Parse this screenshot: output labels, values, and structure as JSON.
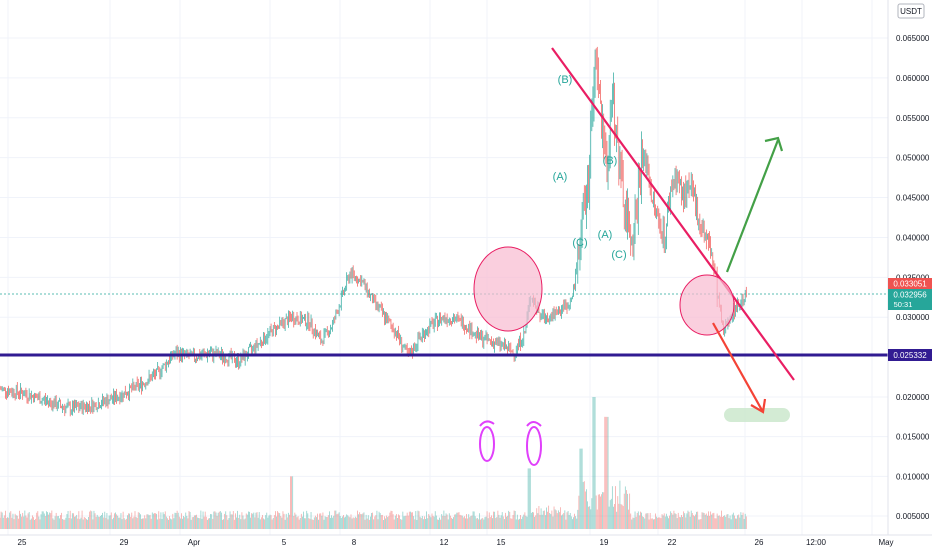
{
  "chart_data": {
    "type": "candlestick",
    "quote_currency": "USDT",
    "y_axis": {
      "ticks": [
        "0.065000",
        "0.060000",
        "0.055000",
        "0.050000",
        "0.045000",
        "0.040000",
        "0.035000",
        "0.030000",
        "0.020000",
        "0.015000",
        "0.010000",
        "0.005000"
      ],
      "values": [
        0.065,
        0.06,
        0.055,
        0.05,
        0.045,
        0.04,
        0.035,
        0.03,
        0.02,
        0.015,
        0.01,
        0.005
      ]
    },
    "x_axis": {
      "ticks": [
        "25",
        "29",
        "Apr",
        "5",
        "8",
        "12",
        "15",
        "19",
        "22",
        "26",
        "12:00",
        "May"
      ]
    },
    "price_labels": [
      {
        "text": "0.033051",
        "color": "#ef5350"
      },
      {
        "text": "0.032956",
        "color": "#26a69a"
      },
      {
        "text": "50:31",
        "color": "#26a69a"
      },
      {
        "text": "0.025332",
        "color": "#311b92"
      }
    ],
    "support_level": 0.025332,
    "current_price": 0.032956,
    "wave_labels": [
      "(B)",
      "(A)",
      "(C)",
      "(B)",
      "(A)",
      "(C)"
    ],
    "colors": {
      "up": "#26a69a",
      "down": "#ef5350",
      "trendline": "#e91e63",
      "support": "#311b92",
      "arrow_up": "#43a047",
      "arrow_down": "#f44336",
      "circle_fill": "#f8bbd0",
      "target_zone": "#c8e6c9",
      "volume_mark": "#e040fb"
    },
    "price_path": [
      [
        0.021,
        0
      ],
      [
        0.0205,
        4
      ],
      [
        0.0195,
        8
      ],
      [
        0.0185,
        12
      ],
      [
        0.019,
        16
      ],
      [
        0.02,
        20
      ],
      [
        0.0215,
        24
      ],
      [
        0.023,
        27
      ],
      [
        0.0255,
        30
      ],
      [
        0.025,
        33
      ],
      [
        0.0255,
        36
      ],
      [
        0.025,
        39
      ],
      [
        0.0245,
        41
      ],
      [
        0.0265,
        44
      ],
      [
        0.0285,
        47
      ],
      [
        0.03,
        50
      ],
      [
        0.0295,
        53
      ],
      [
        0.027,
        55
      ],
      [
        0.029,
        57
      ],
      [
        0.0355,
        60
      ],
      [
        0.0345,
        62
      ],
      [
        0.032,
        64
      ],
      [
        0.03,
        66
      ],
      [
        0.028,
        68
      ],
      [
        0.025,
        70
      ],
      [
        0.0275,
        72
      ],
      [
        0.029,
        74
      ],
      [
        0.03,
        76
      ],
      [
        0.0298,
        78
      ],
      [
        0.029,
        80
      ],
      [
        0.0275,
        82
      ],
      [
        0.027,
        84
      ],
      [
        0.0265,
        86
      ],
      [
        0.0255,
        88
      ],
      [
        0.028,
        90
      ],
      [
        0.033,
        91
      ],
      [
        0.031,
        92
      ],
      [
        0.03,
        93
      ],
      [
        0.0305,
        95
      ],
      [
        0.0315,
        97
      ],
      [
        0.032,
        98
      ],
      [
        0.036,
        99
      ],
      [
        0.044,
        100
      ],
      [
        0.047,
        101
      ],
      [
        0.062,
        102
      ],
      [
        0.056,
        103
      ],
      [
        0.048,
        104
      ],
      [
        0.059,
        105
      ],
      [
        0.05,
        106
      ],
      [
        0.044,
        107
      ],
      [
        0.04,
        108
      ],
      [
        0.043,
        109
      ],
      [
        0.05,
        110
      ],
      [
        0.049,
        111
      ],
      [
        0.044,
        112
      ],
      [
        0.042,
        113
      ],
      [
        0.04,
        114
      ],
      [
        0.046,
        115
      ],
      [
        0.048,
        116
      ],
      [
        0.045,
        117
      ],
      [
        0.046,
        118
      ],
      [
        0.045,
        119
      ],
      [
        0.042,
        120
      ],
      [
        0.04,
        121
      ],
      [
        0.038,
        122
      ],
      [
        0.033,
        123
      ],
      [
        0.028,
        124
      ],
      [
        0.03,
        125
      ],
      [
        0.031,
        126
      ],
      [
        0.032,
        127
      ],
      [
        0.033,
        128
      ]
    ]
  }
}
